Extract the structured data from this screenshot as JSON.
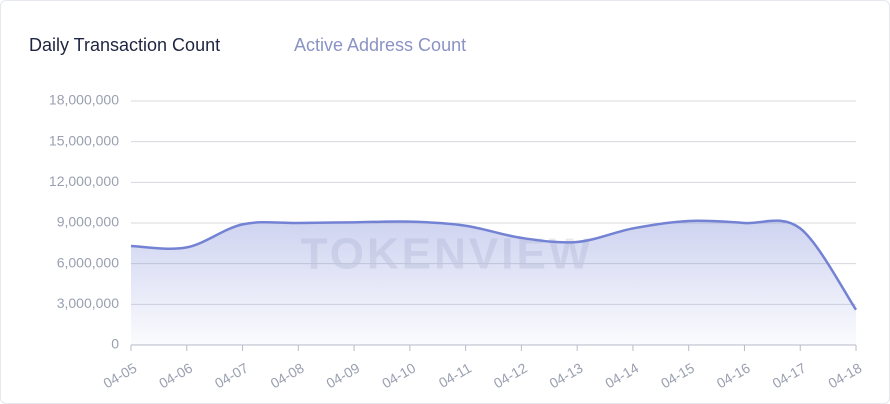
{
  "tabs": [
    "Daily Transaction Count",
    "Active Address Count"
  ],
  "chart_data": {
    "type": "area",
    "watermark": "TOKENVIEW",
    "categories": [
      "04-05",
      "04-06",
      "04-07",
      "04-08",
      "04-09",
      "04-10",
      "04-11",
      "04-12",
      "04-13",
      "04-14",
      "04-15",
      "04-16",
      "04-17",
      "04-18"
    ],
    "series": [
      {
        "name": "Daily Transaction Count",
        "color": "#7482d4",
        "values": [
          7300000,
          7200000,
          8900000,
          9000000,
          9050000,
          9100000,
          8800000,
          7900000,
          7600000,
          8600000,
          9150000,
          9000000,
          8600000,
          2600000
        ]
      }
    ],
    "ylim": [
      0,
      18000000
    ],
    "yticks": [
      0,
      {
        "value": 3000000,
        "label": "3,000,000"
      },
      {
        "value": 6000000,
        "label": "6,000,000"
      },
      {
        "value": 9000000,
        "label": "9,000,000"
      },
      {
        "value": 12000000,
        "label": "12,000,000"
      },
      {
        "value": 15000000,
        "label": "15,000,000"
      },
      {
        "value": 18000000,
        "label": "18,000,000"
      }
    ],
    "grid": true
  }
}
